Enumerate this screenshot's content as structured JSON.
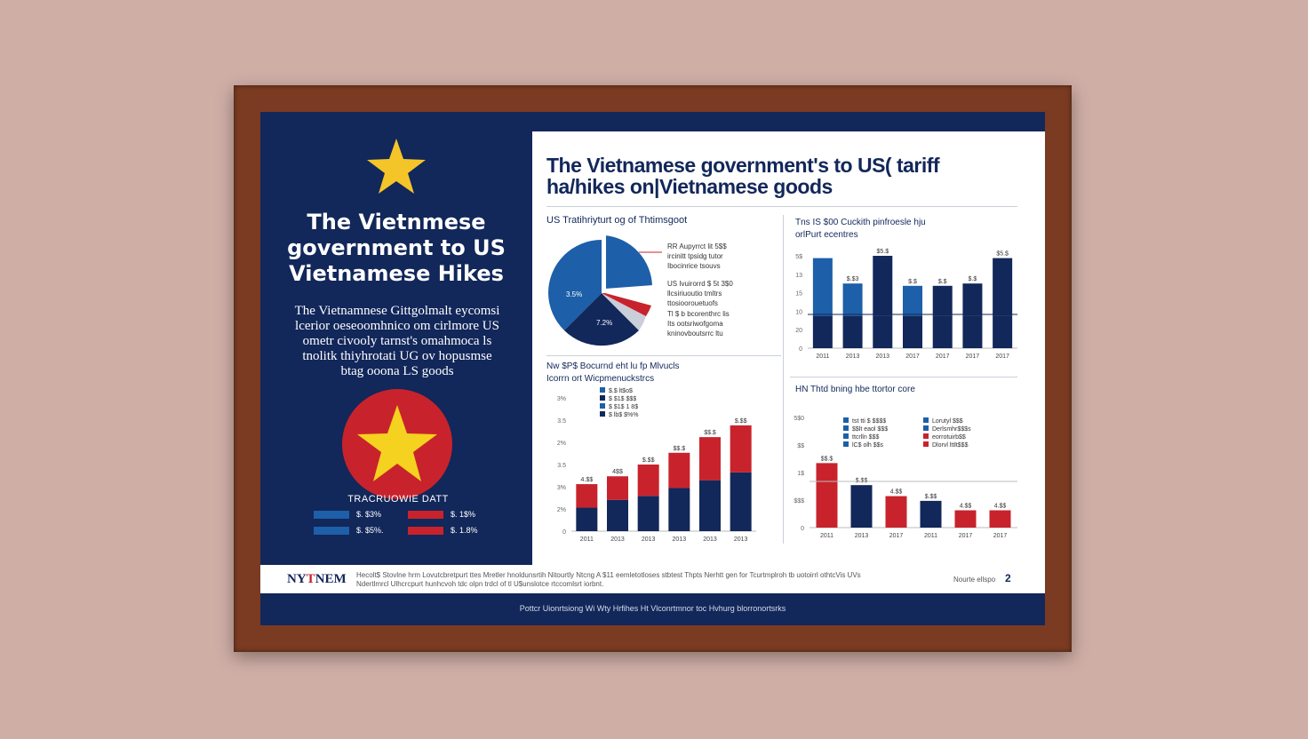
{
  "colors": {
    "navy": "#12275a",
    "blue": "#1d5fa8",
    "red": "#c8232c",
    "star": "#f4c528",
    "frame": "#7a3b22"
  },
  "left_panel": {
    "title_lines": [
      "The Vietnmese",
      "government to US",
      "Vietnamese Hikes"
    ],
    "body_lines": [
      "The Vietnamnese Gittgolmalt eycomsi",
      "lcerior oeseoomhnico om cirlmore US",
      "ometr civooly  tarnst's omahmoca ls",
      "tnolitk thiyhrotati UG ov hopusmse",
      "btag ooona  LS goods"
    ],
    "legend_title": "TRACRUOWIE DATT",
    "legend_items": [
      {
        "label": "$. $3%",
        "color": "#1d5fa8"
      },
      {
        "label": "$. 1$%",
        "color": "#c8232c"
      },
      {
        "label": "$. $5%.",
        "color": "#1d5fa8"
      },
      {
        "label": "$. 1.8%",
        "color": "#c8232c"
      }
    ]
  },
  "main_title_lines": [
    "The Vietnamese government's to US( tariff",
    "ha/hikes on|Vietnamese goods"
  ],
  "pie_panel": {
    "title": "US Tratihriyturt og of Thtimsgoot",
    "label_blue": "3.5%",
    "label_navy": "7.2%",
    "annot1": [
      "RR  Aupyrrct lit 5$$",
      "ircinitt tpsidg tutor",
      "Ibocinrice tsouvs"
    ],
    "annot2": [
      "US  Ivuirorrd $ 5t 3$0",
      "llcsiriuoutio tmltrs",
      "ttosioorouetuofs"
    ],
    "annot3": [
      "Tl $ b  bcorenthrc lis",
      "Its ootsriwofgoma",
      "kninovboutsrrc ltu"
    ]
  },
  "chart_data": [
    {
      "type": "bar",
      "title": "Tns IS $00 Cuckith pinfroesle hju",
      "subtitle": "orlPurt ecentres",
      "categories": [
        "2011",
        "2013",
        "2013",
        "2017",
        "2017",
        "2017",
        "2017"
      ],
      "ylabels": [
        "5$",
        "13",
        "15",
        "10",
        "20",
        "0"
      ],
      "series": [
        {
          "name": "navy",
          "values": [
            28,
            28,
            28,
            28,
            28,
            28,
            28
          ]
        },
        {
          "name": "blue",
          "values": [
            50,
            28,
            0,
            26,
            0,
            0,
            0
          ]
        },
        {
          "name": "navyTop",
          "values": [
            0,
            0,
            52,
            0,
            26,
            28,
            50
          ]
        }
      ],
      "data_labels": [
        "",
        "$.$3",
        "$5.$",
        "$.$",
        "$.$",
        "$.$",
        "$5.$"
      ],
      "ylim": [
        0,
        80
      ]
    },
    {
      "type": "bar",
      "title": "Nw $P$ Bocurnd eht lu fp Mlvucls",
      "subtitle": "Icorrn ort Wicpmenuckstrcs",
      "categories": [
        "2011",
        "2013",
        "2013",
        "2013",
        "2013",
        "2013"
      ],
      "ylabels": [
        "3%",
        "3.5",
        "2%",
        "3.5",
        "3%",
        "2%",
        "0"
      ],
      "legend": [
        "$.$ lt$o$",
        "$ $1$ $$$",
        "$ $1$ 1 8$",
        "$ lb$ $%%"
      ],
      "series": [
        {
          "name": "navy",
          "values": [
            30,
            40,
            45,
            55,
            65,
            75
          ]
        },
        {
          "name": "red",
          "values": [
            30,
            30,
            40,
            45,
            55,
            60
          ]
        }
      ],
      "data_labels": [
        "4.$$",
        "4$$",
        "$.$$",
        "$$.$",
        "$$.$",
        "$.$$"
      ],
      "ylim": [
        0,
        170
      ]
    },
    {
      "type": "bar",
      "title": "HN Thtd bning hbe ttortor core",
      "categories": [
        "2011",
        "2013",
        "2017",
        "2011",
        "2017",
        "2017"
      ],
      "ylabels": [
        "5$0",
        "$$",
        "1$",
        "$$$",
        "0"
      ],
      "legend_left": [
        "tst tti $ $$$$",
        "$$lt eaol $$$",
        "ttcrlln $$$",
        "lC$ olh $$s"
      ],
      "legend_right": [
        "Lorutyl $$$",
        "Derlsmhr$$$s",
        "eorrotuirb$$",
        "Dlorvl lttlt$$$"
      ],
      "series": [
        {
          "name": "red",
          "values": [
            82,
            0,
            40,
            0,
            22,
            22
          ]
        },
        {
          "name": "navy",
          "values": [
            0,
            54,
            0,
            34,
            0,
            0
          ]
        }
      ],
      "data_labels": [
        "$$.$",
        "$.$$",
        "4.$$",
        "$.$$",
        "4.$$",
        "4.$$"
      ],
      "ylim": [
        0,
        140
      ]
    }
  ],
  "footer": {
    "logo_a": "NY",
    "logo_b": "T",
    "logo_c": "NEM",
    "text_lines": [
      "Hecolt$ Stovlne hrm Lovutcbretpurt ttes Mretler hnoldunsrtih Nitourtly  Ntcng A $11 eemletotloses stbtest Thpts Nerhtt gen for Tcurtmplroh tb uotoirrl othtcVis UVs",
      "Ndertlmrcl Ulhcrcpurt hunhcvoh tdc olpn trdcl of tl U$unslotce rtccomlsrt iorbnt."
    ],
    "right_text": "Nourte ellspo",
    "page_number": "2",
    "caption": "Pottcr Uionrtsiong Wi Wty Hrfihes Ht Vlconrtmnor toc Hvhurg blorronortsrks"
  }
}
